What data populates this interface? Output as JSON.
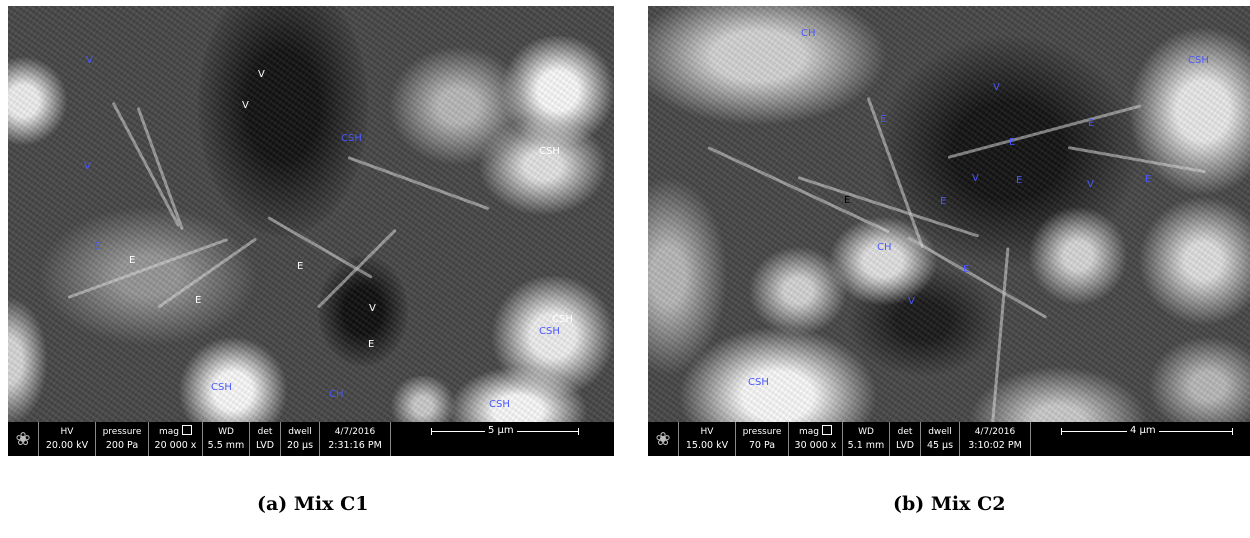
{
  "panels": [
    {
      "caption": "(a)  Mix C1",
      "labels": [
        "V",
        "V",
        "V",
        "V",
        "CSH",
        "CSH",
        "E",
        "E",
        "E",
        "E",
        "V",
        "E",
        "CSH",
        "CSH",
        "CSH",
        "CSH",
        "CH"
      ],
      "databar": {
        "hv_label": "HV",
        "hv": "20.00 kV",
        "pressure_label": "pressure",
        "pressure": "200 Pa",
        "mag_label": "mag",
        "mag": "20 000 x",
        "wd_label": "WD",
        "wd": "5.5 mm",
        "det_label": "det",
        "det": "LVD",
        "dwell_label": "dwell",
        "dwell": "20 µs",
        "date": "4/7/2016",
        "time": "2:31:16 PM",
        "scale": "5 µm"
      }
    },
    {
      "caption": "(b)  Mix C2",
      "labels": [
        "CH",
        "CSH",
        "V",
        "E",
        "E",
        "E",
        "V",
        "E",
        "V",
        "E",
        "E",
        "E",
        "CH",
        "E",
        "V",
        "CSH"
      ],
      "databar": {
        "hv_label": "HV",
        "hv": "15.00 kV",
        "pressure_label": "pressure",
        "pressure": "70 Pa",
        "mag_label": "mag",
        "mag": "30 000 x",
        "wd_label": "WD",
        "wd": "5.1 mm",
        "det_label": "det",
        "det": "LVD",
        "dwell_label": "dwell",
        "dwell": "45 µs",
        "date": "4/7/2016",
        "time": "3:10:02 PM",
        "scale": "4 µm"
      }
    }
  ]
}
